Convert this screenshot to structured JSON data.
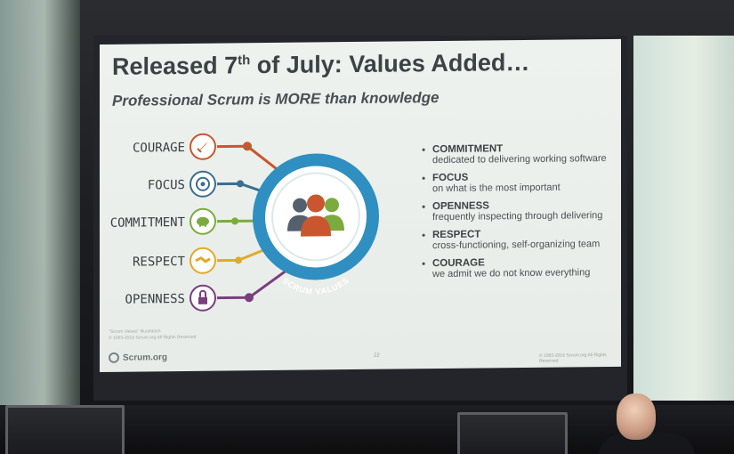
{
  "slide": {
    "title_pre": "Released 7",
    "title_sup": "th",
    "title_post": " of July: Values Added…",
    "subtitle": "Professional Scrum is MORE than knowledge",
    "diagram": {
      "center_label": "SCRUM VALUES",
      "spokes": [
        {
          "label": "COURAGE",
          "color": "#c9562e",
          "icon": "rocket-icon"
        },
        {
          "label": "FOCUS",
          "color": "#3b6e90",
          "icon": "target-icon"
        },
        {
          "label": "COMMITMENT",
          "color": "#7bab3f",
          "icon": "piggy-bank-icon"
        },
        {
          "label": "RESPECT",
          "color": "#e1a92b",
          "icon": "handshake-icon"
        },
        {
          "label": "OPENNESS",
          "color": "#7a3e7f",
          "icon": "padlock-icon"
        }
      ],
      "ring_color": "#2f8fc0",
      "people_colors": [
        "#55606d",
        "#c9562e",
        "#7bab3f"
      ]
    },
    "values": [
      {
        "name": "COMMITMENT",
        "desc": "dedicated to delivering working software"
      },
      {
        "name": "FOCUS",
        "desc": "on what is the most important"
      },
      {
        "name": "OPENNESS",
        "desc": "frequently inspecting through delivering"
      },
      {
        "name": "RESPECT",
        "desc": "cross-functioning, self-organizing team"
      },
      {
        "name": "COURAGE",
        "desc": "we admit we do not know everything"
      }
    ],
    "footnote_line1": "\"Scrum Values\" Illustration",
    "footnote_line2": "© 1993-2016 Scrum.org All Rights Reserved",
    "logo_text": "Scrum.org",
    "page_number": "22",
    "copyright": "© 1993-2016 Scrum.org All Rights Reserved"
  }
}
